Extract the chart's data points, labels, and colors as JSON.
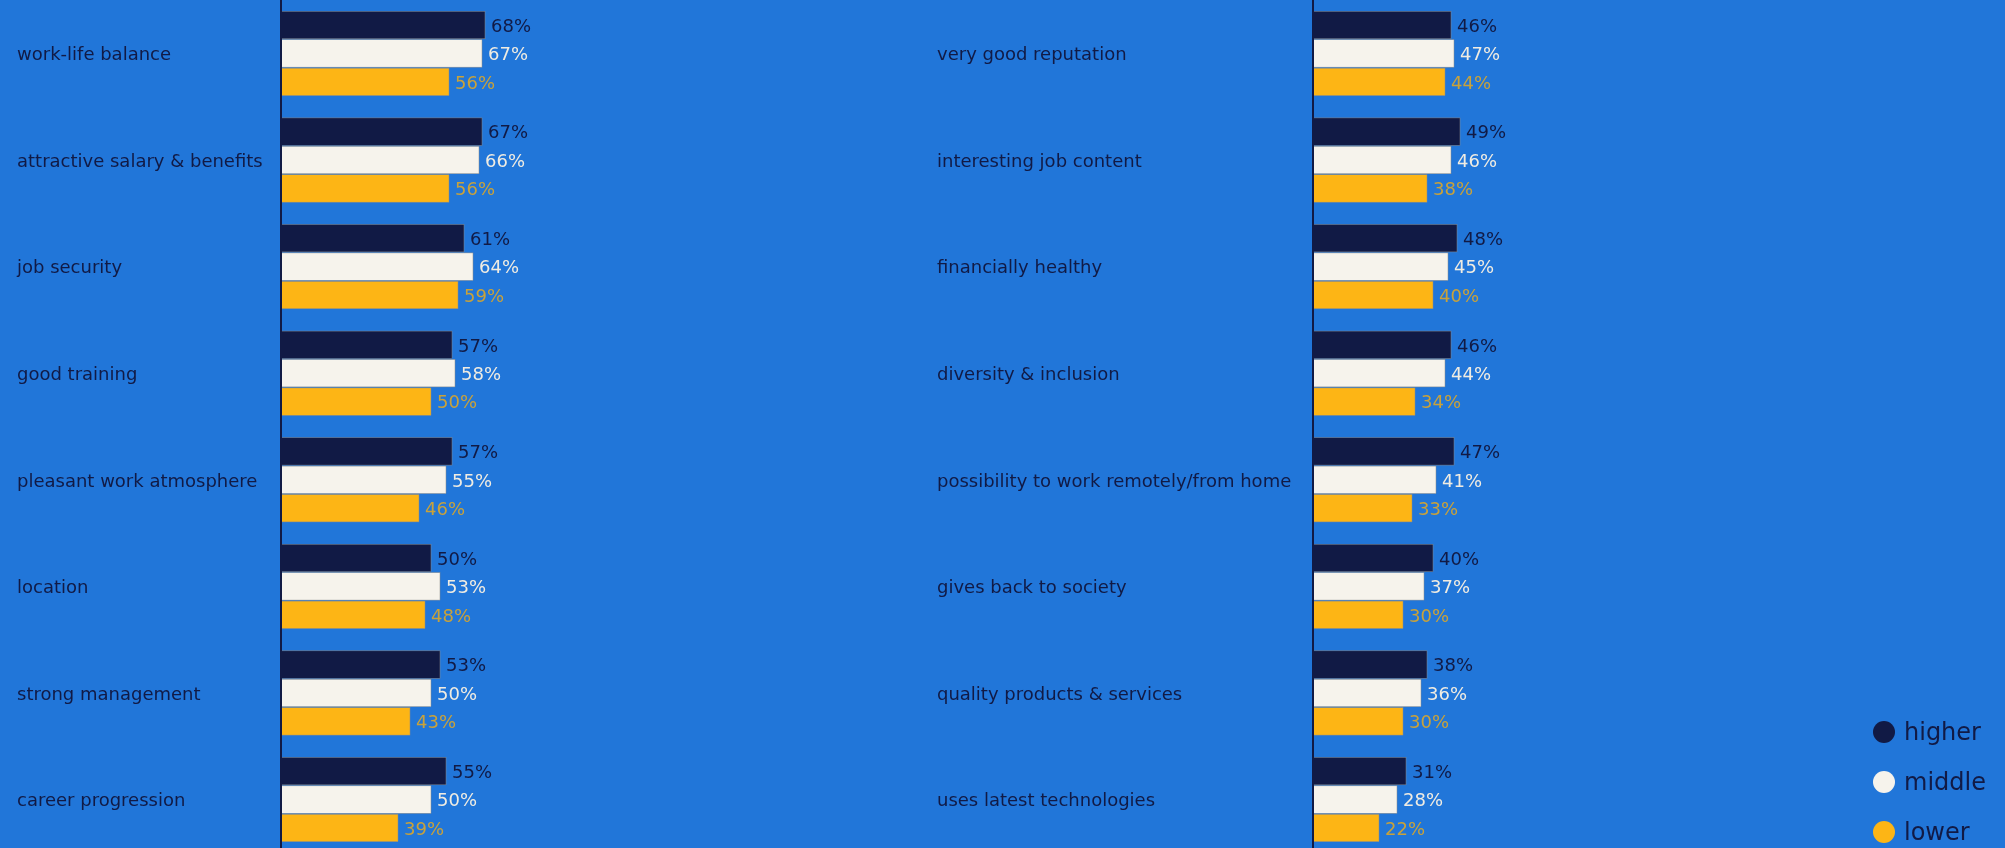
{
  "chart_data": [
    {
      "type": "bar",
      "orientation": "horizontal",
      "categories": [
        "work-life balance",
        "attractive salary & benefits",
        "job security",
        "good training",
        "pleasant work atmosphere",
        "location",
        "strong management",
        "career progression"
      ],
      "legend": false,
      "tick_labels": "y",
      "series": [
        {
          "color": "#111a45",
          "values": [
            68,
            67,
            61,
            57,
            57,
            50,
            53,
            55
          ],
          "value_labels": [
            "68%",
            "67%",
            "61%",
            "57%",
            "57%",
            "50%",
            "53%",
            "55%"
          ]
        },
        {
          "color": "#f6f3ec",
          "values": [
            67,
            66,
            64,
            58,
            55,
            53,
            50,
            50
          ],
          "value_labels": [
            "67%",
            "66%",
            "64%",
            "58%",
            "55%",
            "53%",
            "50%",
            "50%"
          ]
        },
        {
          "color": "#fdb515",
          "values": [
            56,
            56,
            59,
            50,
            46,
            48,
            43,
            39
          ],
          "value_labels": [
            "56%",
            "56%",
            "59%",
            "50%",
            "46%",
            "48%",
            "43%",
            "39%"
          ]
        }
      ]
    },
    {
      "type": "bar",
      "orientation": "horizontal",
      "categories": [
        "very good reputation",
        "interesting job content",
        "financially healthy",
        "diversity & inclusion",
        "possibility to work remotely/from home",
        "gives back to society",
        "quality products & services",
        "uses latest technologies"
      ],
      "legend": "bottom right",
      "tick_labels": "y",
      "series": [
        {
          "name": "higher",
          "color": "#111a45",
          "values": [
            46,
            49,
            48,
            46,
            47,
            40,
            38,
            31
          ],
          "value_labels": [
            "46%",
            "49%",
            "48%",
            "46%",
            "47%",
            "40%",
            "38%",
            "31%"
          ]
        },
        {
          "name": "middle",
          "color": "#f6f3ec",
          "values": [
            47,
            46,
            45,
            44,
            41,
            37,
            36,
            28
          ],
          "value_labels": [
            "47%",
            "46%",
            "45%",
            "44%",
            "41%",
            "37%",
            "36%",
            "28%"
          ]
        },
        {
          "name": "lower",
          "color": "#fdb515",
          "values": [
            44,
            38,
            40,
            34,
            33,
            30,
            30,
            22
          ],
          "value_labels": [
            "44%",
            "38%",
            "40%",
            "34%",
            "33%",
            "30%",
            "30%",
            "22%"
          ]
        }
      ]
    }
  ]
}
